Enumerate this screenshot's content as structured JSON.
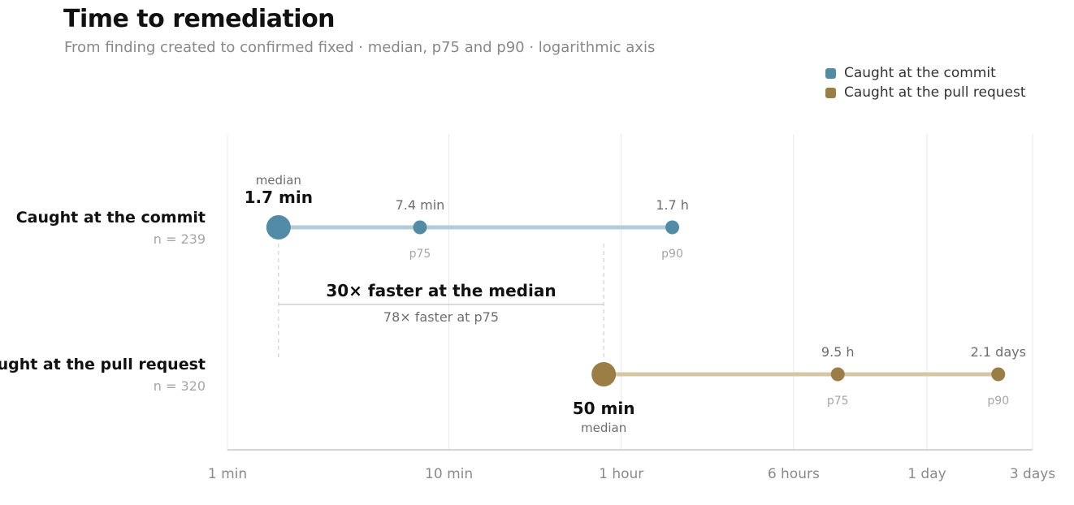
{
  "colors": {
    "commit": "#528BA6",
    "commit_line": "#B2CDD7",
    "pull_request": "#9B7D46",
    "pull_request_line": "#D4C8A4",
    "grid": "#E8E8E8",
    "axis": "#C7C7C7",
    "bracket": "#C8C8C8",
    "tick_text": "#8A8A8A",
    "dim_text": "#A6A6A6",
    "value_text": "#6E6E6E",
    "dark_text": "#111111"
  },
  "chart_data": {
    "type": "dot-range",
    "title": "Time to remediation",
    "subtitle": "From finding created to confirmed fixed · median, p75 and p90 · logarithmic axis",
    "x_scale": "log",
    "x_unit": "minutes",
    "xlim": [
      1,
      4320
    ],
    "ticks": [
      {
        "label": "1 min",
        "value": 1
      },
      {
        "label": "10 min",
        "value": 10
      },
      {
        "label": "1 hour",
        "value": 60
      },
      {
        "label": "6 hours",
        "value": 360
      },
      {
        "label": "1 day",
        "value": 1440
      },
      {
        "label": "3 days",
        "value": 4320
      }
    ],
    "grid": true,
    "legend_position": "top-right",
    "legend": [
      "Caught at the commit",
      "Caught at the pull request"
    ],
    "series": [
      {
        "name": "Caught at the commit",
        "row_label": "Caught at the commit",
        "n_label": "n = 239",
        "color_key": "commit",
        "points": [
          {
            "stat": "median",
            "minutes": 1.7,
            "value_label": "1.7 min",
            "stat_label": "median"
          },
          {
            "stat": "p75",
            "minutes": 7.4,
            "value_label": "7.4 min",
            "stat_label": "p75"
          },
          {
            "stat": "p90",
            "minutes": 102,
            "value_label": "1.7 h",
            "stat_label": "p90"
          }
        ]
      },
      {
        "name": "Caught at the pull request",
        "row_label": "Caught at the pull request",
        "n_label": "n = 320",
        "color_key": "pull_request",
        "points": [
          {
            "stat": "median",
            "minutes": 50,
            "value_label": "50 min",
            "stat_label": "median"
          },
          {
            "stat": "p75",
            "minutes": 570,
            "value_label": "9.5 h",
            "stat_label": "p75"
          },
          {
            "stat": "p90",
            "minutes": 3024,
            "value_label": "2.1 days",
            "stat_label": "p90"
          }
        ]
      }
    ],
    "annotation": {
      "from_minutes": 1.7,
      "to_minutes": 50,
      "headline": "30× faster at the median",
      "detail": "78× faster at p75"
    }
  }
}
